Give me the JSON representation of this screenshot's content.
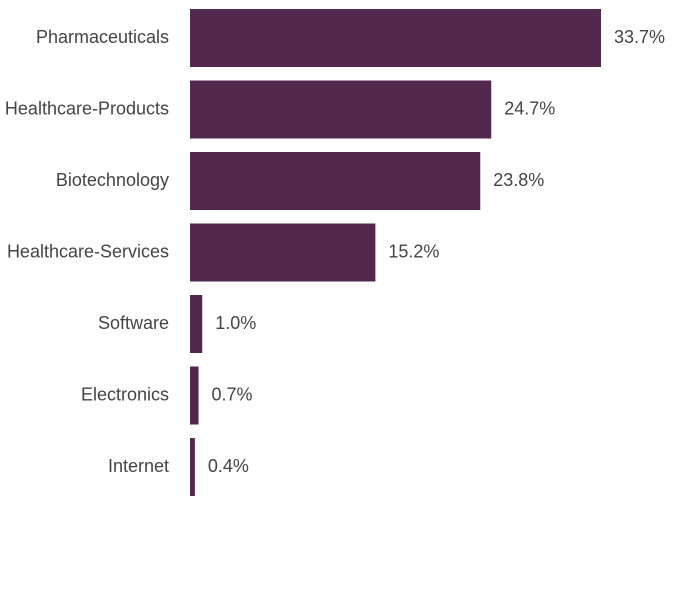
{
  "chart_data": {
    "type": "barh",
    "categories": [
      "Pharmaceuticals",
      "Healthcare-Products",
      "Biotechnology",
      "Healthcare-Services",
      "Software",
      "Electronics",
      "Internet"
    ],
    "values": [
      33.7,
      24.7,
      23.8,
      15.2,
      1.0,
      0.7,
      0.4
    ],
    "value_labels": [
      "33.7%",
      "24.7%",
      "23.8%",
      "15.2%",
      "1.0%",
      "0.7%",
      "0.4%"
    ],
    "color": "#52284e"
  }
}
